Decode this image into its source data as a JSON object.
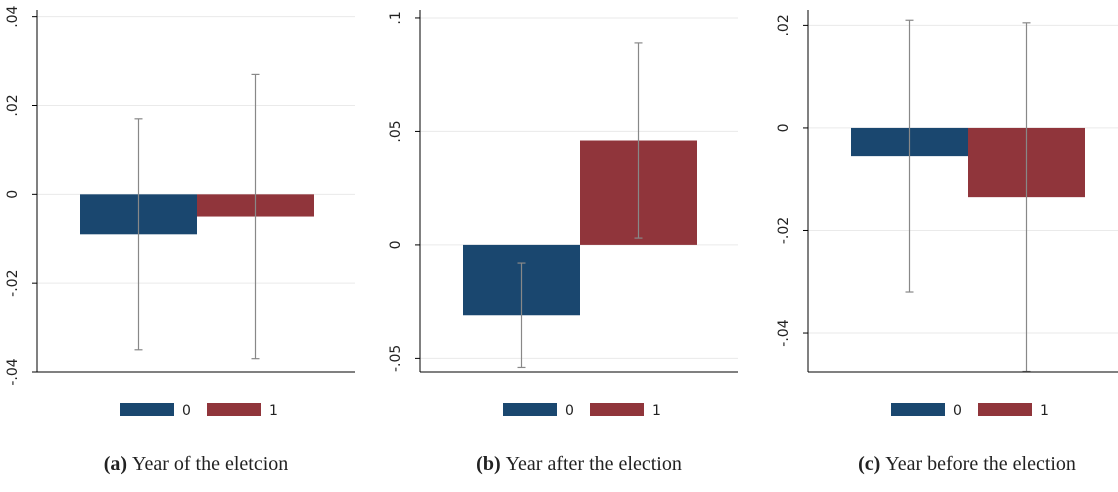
{
  "chart_data": [
    {
      "type": "bar",
      "grid": true,
      "ylim": [
        -0.04,
        0.0415
      ],
      "yticks": [
        {
          "value": -0.04,
          "label": "-.04"
        },
        {
          "value": -0.02,
          "label": "-.02"
        },
        0,
        {
          "value": 0.02,
          "label": ".02"
        },
        {
          "value": 0.04,
          "label": ".04"
        }
      ],
      "series": [
        {
          "name": "0",
          "color": "#1a476f",
          "values": [
            -0.009
          ],
          "errors": [
            0.026
          ]
        },
        {
          "name": "1",
          "color": "#90353b",
          "values": [
            -0.005
          ],
          "errors": [
            0.032
          ]
        }
      ],
      "caption_label": "(a)",
      "caption": "Year of the eletcion"
    },
    {
      "type": "bar",
      "grid": true,
      "ylim": [
        -0.056,
        0.1035
      ],
      "yticks": [
        {
          "value": -0.05,
          "label": "-.05"
        },
        0,
        {
          "value": 0.05,
          "label": ".05"
        },
        {
          "value": 0.1,
          "label": ".1"
        }
      ],
      "series": [
        {
          "name": "0",
          "color": "#1a476f",
          "values": [
            -0.031
          ],
          "errors": [
            0.023
          ]
        },
        {
          "name": "1",
          "color": "#90353b",
          "values": [
            0.046
          ],
          "errors": [
            0.043
          ]
        }
      ],
      "caption_label": "(b)",
      "caption": "Year after the election"
    },
    {
      "type": "bar",
      "grid": true,
      "ylim": [
        -0.0476,
        0.023
      ],
      "yticks": [
        {
          "value": -0.04,
          "label": "-.04"
        },
        {
          "value": -0.02,
          "label": "-.02"
        },
        0,
        {
          "value": 0.02,
          "label": ".02"
        }
      ],
      "series": [
        {
          "name": "0",
          "color": "#1a476f",
          "values": [
            -0.0055
          ],
          "errors": [
            0.0265
          ]
        },
        {
          "name": "1",
          "color": "#90353b",
          "values": [
            -0.0135
          ],
          "errors": [
            0.034
          ]
        }
      ],
      "caption_label": "(c)",
      "caption": "Year before the election"
    }
  ]
}
